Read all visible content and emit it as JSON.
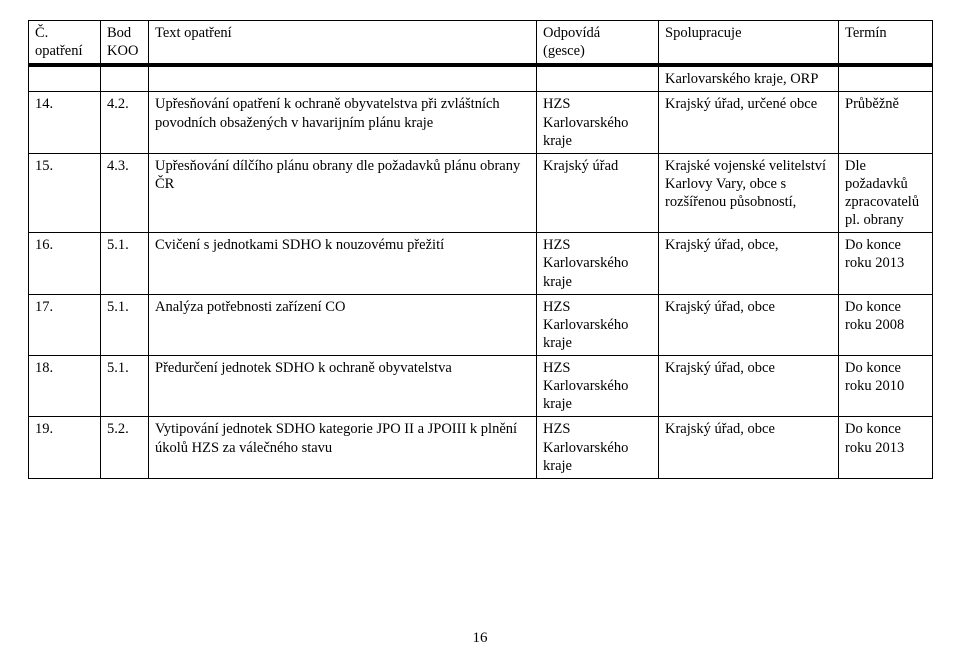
{
  "header": {
    "c1a": "Č.",
    "c1b": "opatření",
    "c2a": "Bod",
    "c2b": "KOO",
    "c3": "Text opatření",
    "c4a": "Odpovídá",
    "c4b": "(gesce)",
    "c5": "Spolupracuje",
    "c6": "Termín"
  },
  "rows": [
    {
      "c1": "",
      "c2": "",
      "c3": "",
      "c4": "",
      "c5": "Karlovarského kraje, ORP",
      "c6": ""
    },
    {
      "c1": "14.",
      "c2": "4.2.",
      "c3": "Upřesňování opatření k ochraně obyvatelstva při zvláštních povodních obsažených v havarijním plánu kraje",
      "c4": "HZS Karlovarského kraje",
      "c5": "Krajský úřad, určené obce",
      "c6": "Průběžně"
    },
    {
      "c1": "15.",
      "c2": "4.3.",
      "c3": "Upřesňování dílčího plánu obrany dle požadavků plánu obrany ČR",
      "c4": "Krajský úřad",
      "c5": "Krajské vojenské velitelství Karlovy Vary, obce s rozšířenou působností,",
      "c6": "Dle požadavků zpracovatelů pl. obrany"
    },
    {
      "c1": "16.",
      "c2": "5.1.",
      "c3": "Cvičení s jednotkami SDHO k nouzovému přežití",
      "c4": "HZS Karlovarského kraje",
      "c5": "Krajský úřad, obce,",
      "c6": "Do konce roku 2013"
    },
    {
      "c1": "17.",
      "c2": "5.1.",
      "c3": "Analýza potřebnosti zařízení CO",
      "c4": "HZS Karlovarského kraje",
      "c5": "Krajský úřad, obce",
      "c6": "Do konce roku 2008"
    },
    {
      "c1": "18.",
      "c2": "5.1.",
      "c3": "Předurčení jednotek SDHO k ochraně obyvatelstva",
      "c4": "HZS Karlovarského kraje",
      "c5": "Krajský úřad, obce",
      "c6": "Do konce roku 2010"
    },
    {
      "c1": "19.",
      "c2": "5.2.",
      "c3": "Vytipování jednotek SDHO kategorie JPO II a JPOIII k plnění úkolů HZS za válečného stavu",
      "c4": "HZS Karlovarského kraje",
      "c5": "Krajský úřad, obce",
      "c6": "Do konce roku 2013"
    }
  ],
  "pagenum": "16"
}
